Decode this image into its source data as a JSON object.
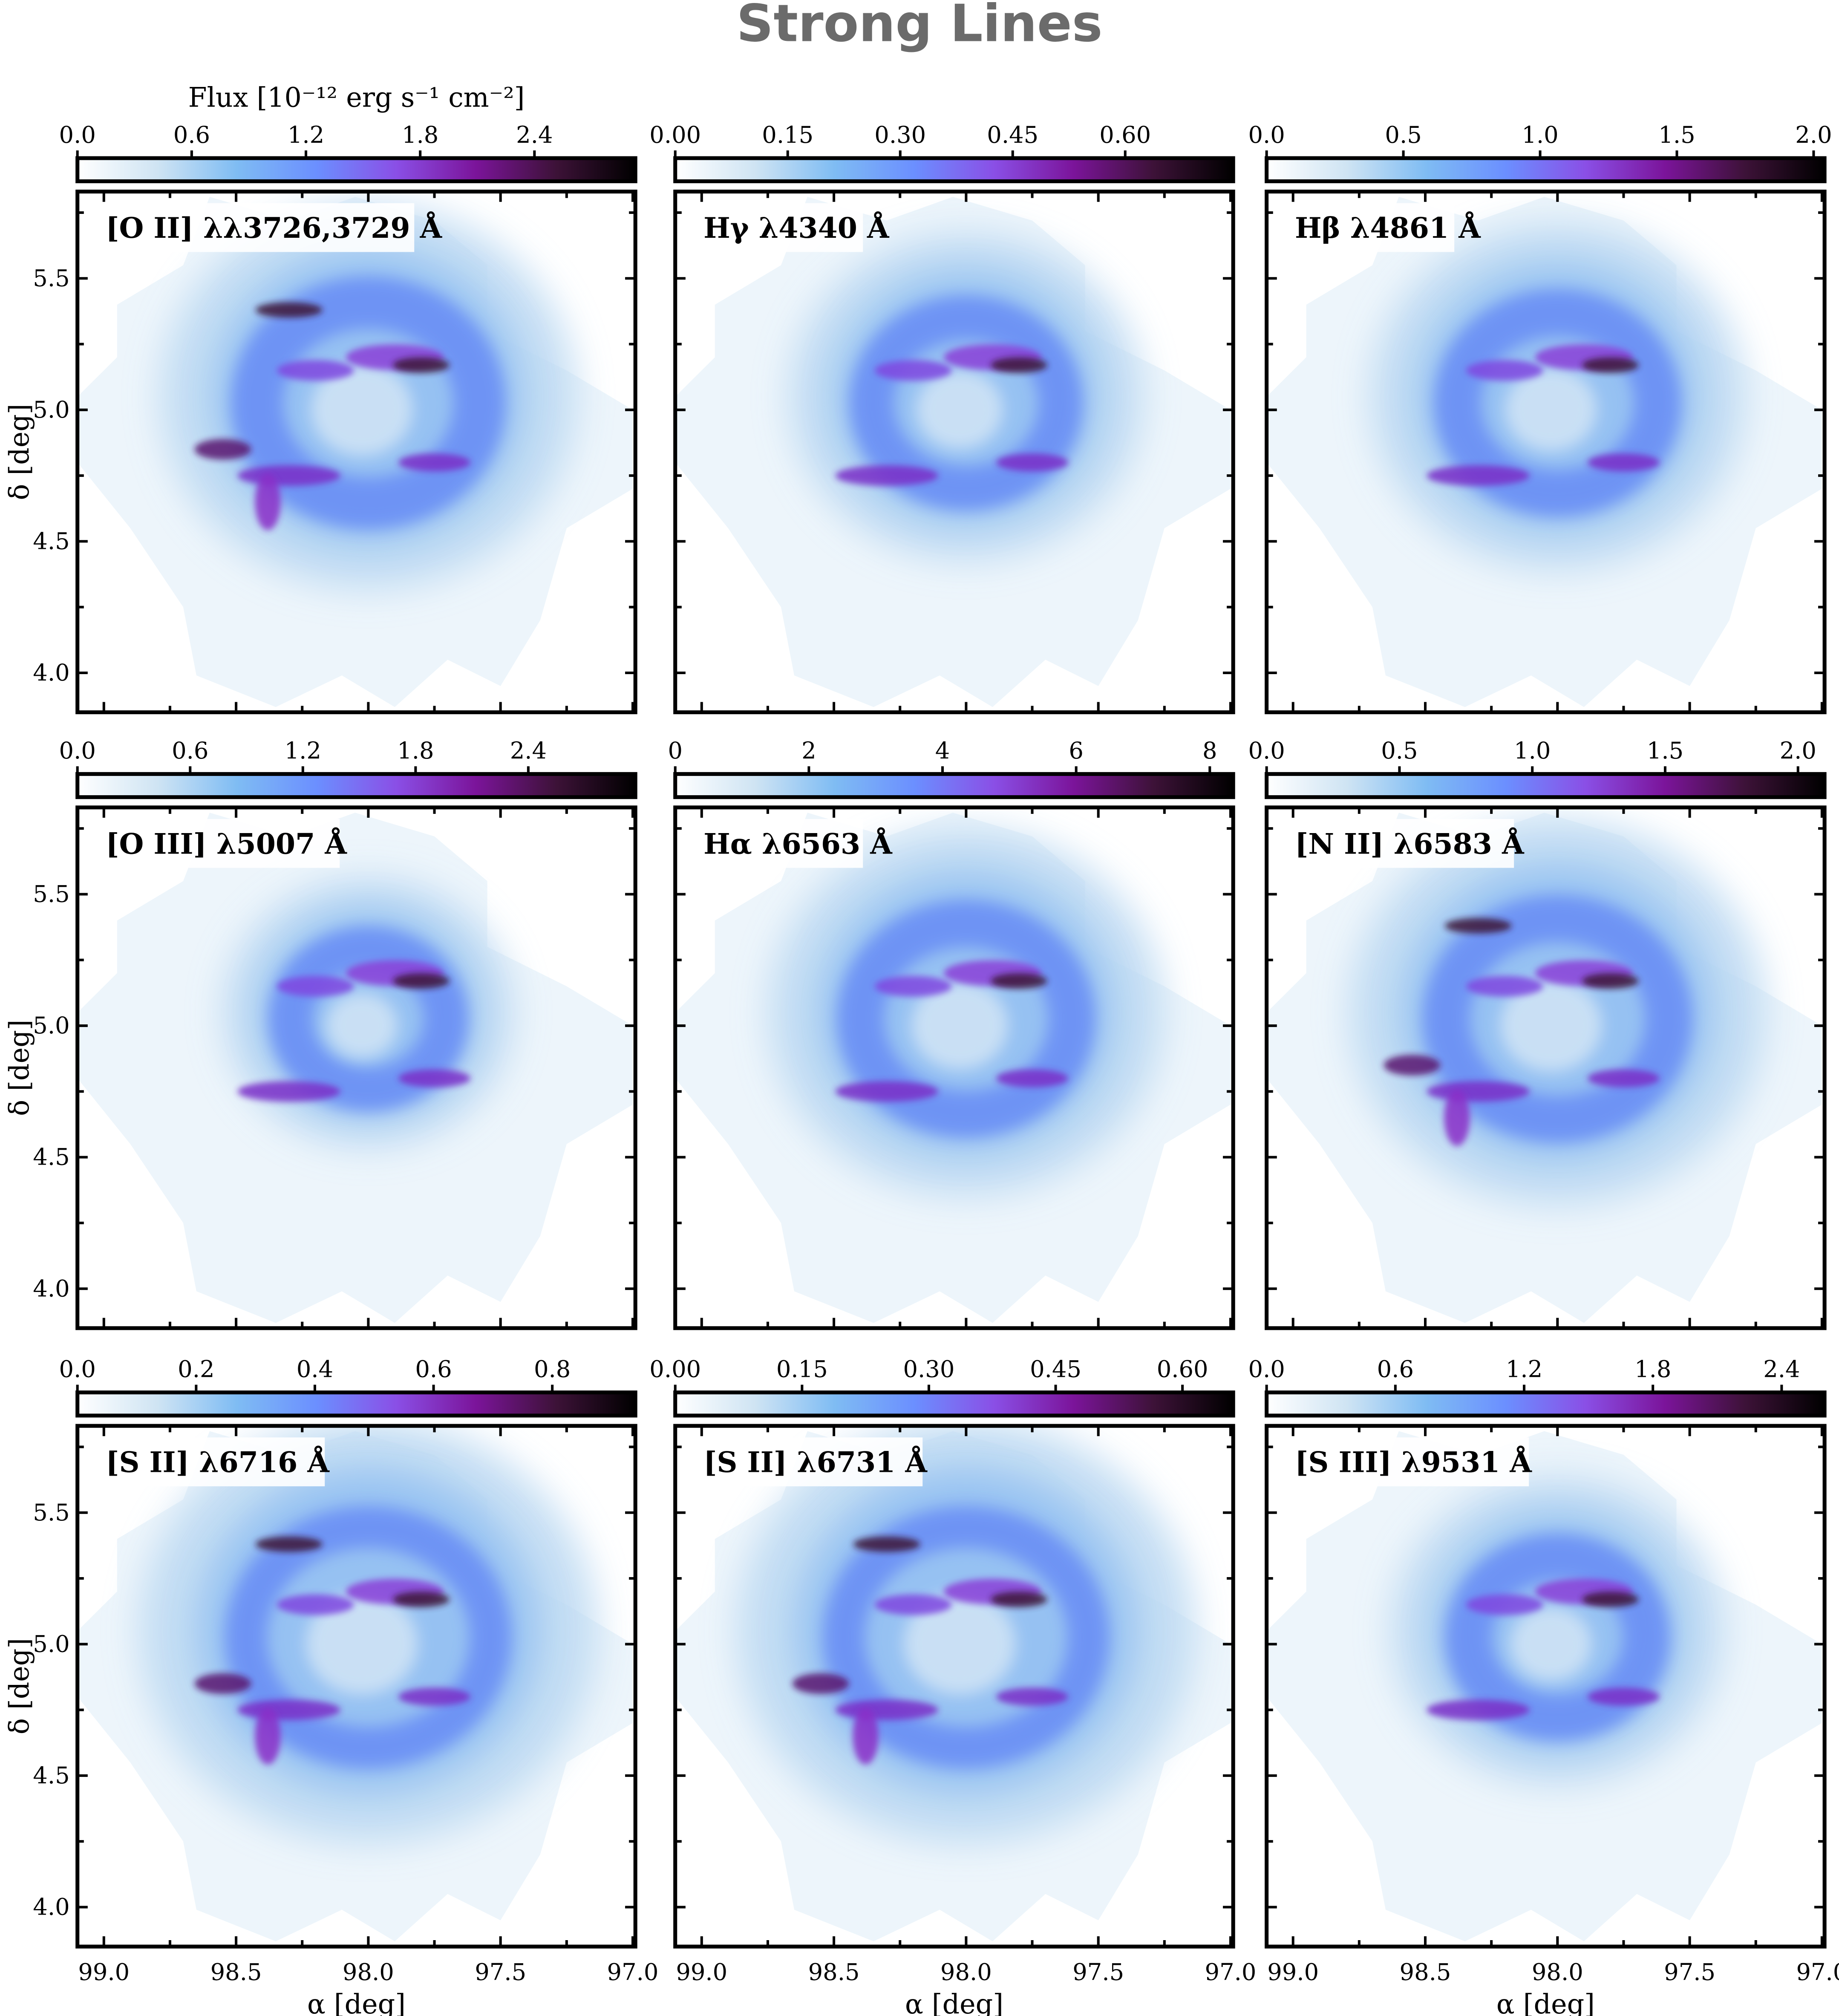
{
  "title": "Strong Lines",
  "colors": {
    "colormap": [
      "#ffffff",
      "#cfe4f3",
      "#7fbcf3",
      "#6b8fff",
      "#8a4fe6",
      "#7b149a",
      "#3d1238",
      "#000000"
    ],
    "title_text": "#6b6b6b",
    "mosaic": "#edf5fb"
  },
  "chart_data": {
    "type": "heatmap",
    "colorbar_label": "Flux [10⁻¹² erg s⁻¹ cm⁻²]",
    "xlabel": "α [deg]",
    "ylabel": "δ [deg]",
    "xlim": [
      99.1,
      96.99
    ],
    "ylim": [
      3.85,
      5.83
    ],
    "xticks": [
      "99.0",
      "98.5",
      "98.0",
      "97.5",
      "97.0"
    ],
    "yticks": [
      "4.0",
      "4.5",
      "5.0",
      "5.5"
    ],
    "panels": [
      {
        "label": "[O II] λλ3726,3729 Å",
        "cbar_range": [
          0,
          2.93
        ],
        "cbar_ticks": [
          "0.0",
          "0.6",
          "1.2",
          "1.8",
          "2.4"
        ]
      },
      {
        "label": "Hγ λ4340 Å",
        "cbar_range": [
          0,
          0.744
        ],
        "cbar_ticks": [
          "0.00",
          "0.15",
          "0.30",
          "0.45",
          "0.60"
        ]
      },
      {
        "label": "Hβ λ4861 Å",
        "cbar_range": [
          0,
          2.04
        ],
        "cbar_ticks": [
          "0.0",
          "0.5",
          "1.0",
          "1.5",
          "2.0"
        ]
      },
      {
        "label": "[O III] λ5007 Å",
        "cbar_range": [
          0,
          2.97
        ],
        "cbar_ticks": [
          "0.0",
          "0.6",
          "1.2",
          "1.8",
          "2.4"
        ]
      },
      {
        "label": "Hα λ6563 Å",
        "cbar_range": [
          0,
          8.35
        ],
        "cbar_ticks": [
          "0",
          "2",
          "4",
          "6",
          "8"
        ]
      },
      {
        "label": "[N II] λ6583 Å",
        "cbar_range": [
          0,
          2.1
        ],
        "cbar_ticks": [
          "0.0",
          "0.5",
          "1.0",
          "1.5",
          "2.0"
        ]
      },
      {
        "label": "[S II] λ6716 Å",
        "cbar_range": [
          0,
          0.94
        ],
        "cbar_ticks": [
          "0.0",
          "0.2",
          "0.4",
          "0.6",
          "0.8"
        ]
      },
      {
        "label": "[S II] λ6731 Å",
        "cbar_range": [
          0,
          0.66
        ],
        "cbar_ticks": [
          "0.00",
          "0.15",
          "0.30",
          "0.45",
          "0.60"
        ]
      },
      {
        "label": "[S III] λ9531 Å",
        "cbar_range": [
          0,
          2.6
        ],
        "cbar_ticks": [
          "0.0",
          "0.6",
          "1.2",
          "1.8",
          "2.4"
        ]
      }
    ]
  }
}
